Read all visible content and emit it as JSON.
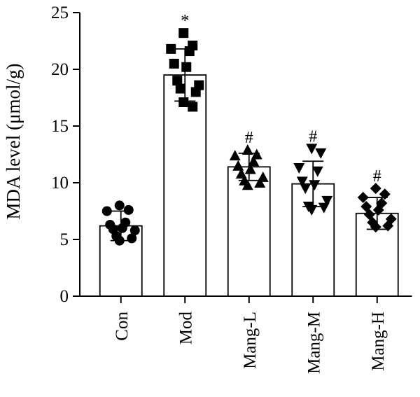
{
  "chart_data": {
    "type": "bar",
    "title": "",
    "xlabel": "",
    "ylabel": "MDA level (μmol/g)",
    "ylim": [
      0,
      25
    ],
    "yticks": [
      0,
      5,
      10,
      15,
      20,
      25
    ],
    "grid": false,
    "legend": "none",
    "categories": [
      "Con",
      "Mod",
      "Mang-L",
      "Mang-M",
      "Mang-H"
    ],
    "means": [
      6.2,
      19.5,
      11.4,
      9.9,
      7.3
    ],
    "sd": [
      1.3,
      2.3,
      1.2,
      2.0,
      1.4
    ],
    "annotations": [
      "",
      "*",
      "#",
      "#",
      "#"
    ],
    "markers": [
      "circle",
      "square",
      "triangle-up",
      "triangle-down",
      "diamond"
    ],
    "points": [
      [
        8.0,
        7.6,
        7.5,
        6.5,
        6.3,
        6.0,
        5.9,
        5.8,
        5.3,
        5.1,
        4.9
      ],
      [
        23.2,
        22.1,
        21.8,
        21.6,
        20.5,
        20.2,
        19.0,
        18.6,
        18.3,
        18.0,
        17.1,
        16.7
      ],
      [
        12.9,
        12.5,
        12.4,
        11.9,
        11.5,
        11.2,
        10.8,
        10.5,
        10.2,
        10.0,
        9.8
      ],
      [
        13.0,
        12.6,
        11.3,
        11.0,
        10.1,
        9.8,
        9.5,
        8.4,
        7.9,
        7.8,
        7.6
      ],
      [
        9.5,
        9.0,
        8.7,
        8.2,
        7.9,
        7.6,
        7.2,
        6.8,
        6.5,
        6.2,
        6.1
      ]
    ]
  },
  "colors": {
    "axis": "#000000",
    "bar_fill": "#ffffff",
    "marker": "#000000"
  }
}
